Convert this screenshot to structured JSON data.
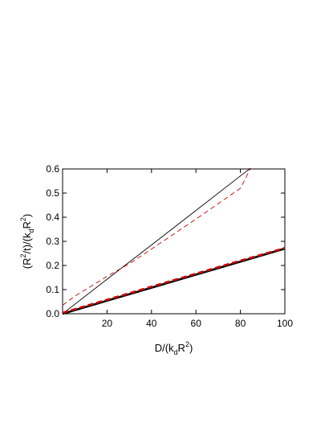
{
  "chart_data": {
    "type": "line",
    "xlim": [
      0,
      100
    ],
    "ylim": [
      0,
      0.6
    ],
    "xticks": [
      20,
      40,
      60,
      80,
      100
    ],
    "xtick_labels": [
      "20",
      "40",
      "60",
      "80",
      "100"
    ],
    "yticks": [
      0.0,
      0.1,
      0.2,
      0.3,
      0.4,
      0.5,
      0.6
    ],
    "ytick_labels": [
      "0.0",
      "0.1",
      "0.2",
      "0.3",
      "0.4",
      "0.5",
      "0.6"
    ],
    "xlabel": {
      "base": "D/(k",
      "sub": "d",
      "mid": "R",
      "sup": "2",
      "end": ")"
    },
    "ylabel": {
      "p1": "(R",
      "sup1": "2",
      "p2": "/t)/(k",
      "sub": "d",
      "p3": "R",
      "sup2": "2",
      "p4": ")"
    },
    "grid": false,
    "legend": "none",
    "series": [
      {
        "color": "#000000",
        "style": "solid",
        "width": "thin",
        "x": [
          0,
          20,
          40,
          60,
          80,
          84.5
        ],
        "y": [
          0.0,
          0.143,
          0.285,
          0.428,
          0.571,
          0.603
        ]
      },
      {
        "color": "#cc0000",
        "style": "dashed",
        "width": "thin",
        "x": [
          0,
          5,
          10,
          20,
          30,
          40,
          50,
          60,
          70,
          80,
          84.5
        ],
        "y": [
          0.035,
          0.07,
          0.098,
          0.155,
          0.207,
          0.268,
          0.33,
          0.392,
          0.456,
          0.52,
          0.6
        ]
      },
      {
        "color": "#000000",
        "style": "solid",
        "width": "thick",
        "x": [
          0,
          20,
          40,
          60,
          80,
          100
        ],
        "y": [
          0.0,
          0.054,
          0.108,
          0.162,
          0.216,
          0.27
        ]
      },
      {
        "color": "#cc0000",
        "style": "dashed",
        "width": "thick",
        "x": [
          0,
          10,
          20,
          40,
          60,
          80,
          100
        ],
        "y": [
          0.004,
          0.031,
          0.058,
          0.112,
          0.166,
          0.22,
          0.272
        ]
      }
    ]
  }
}
